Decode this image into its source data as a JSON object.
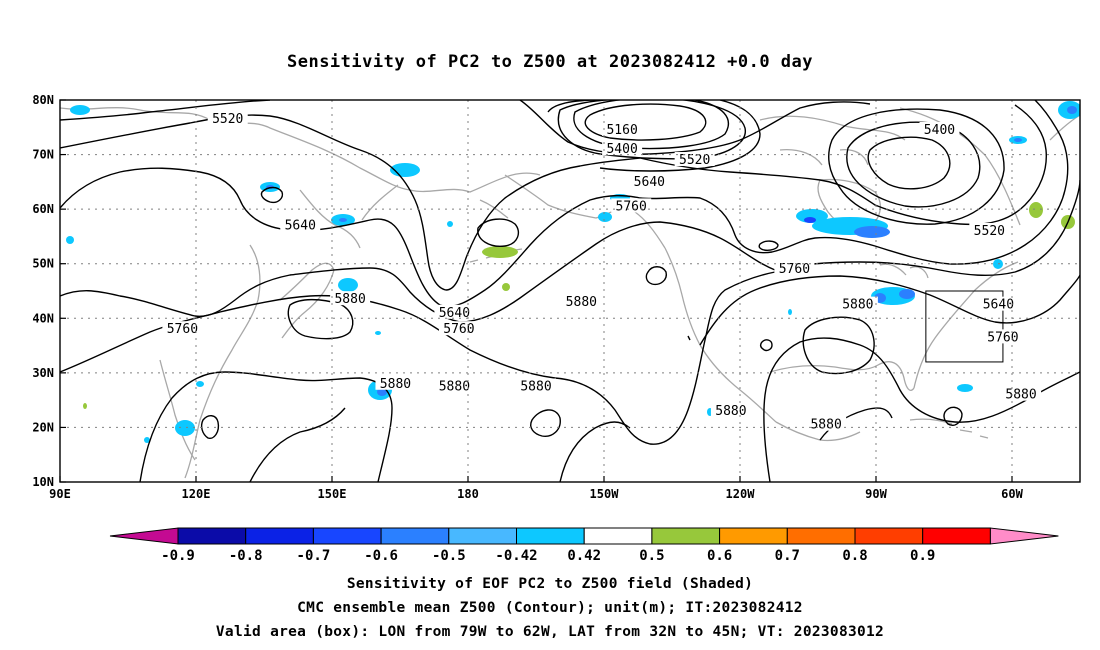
{
  "title": "Sensitivity of PC2 to Z500 at 2023082412 +0.0 day",
  "x_ticks": [
    {
      "lon": 90,
      "label": "90E"
    },
    {
      "lon": 120,
      "label": "120E"
    },
    {
      "lon": 150,
      "label": "150E"
    },
    {
      "lon": 180,
      "label": "180"
    },
    {
      "lon": 210,
      "label": "150W"
    },
    {
      "lon": 240,
      "label": "120W"
    },
    {
      "lon": 270,
      "label": "90W"
    },
    {
      "lon": 300,
      "label": "60W"
    }
  ],
  "y_ticks": [
    {
      "lat": 80,
      "label": "80N"
    },
    {
      "lat": 70,
      "label": "70N"
    },
    {
      "lat": 60,
      "label": "60N"
    },
    {
      "lat": 50,
      "label": "50N"
    },
    {
      "lat": 40,
      "label": "40N"
    },
    {
      "lat": 30,
      "label": "30N"
    },
    {
      "lat": 20,
      "label": "20N"
    },
    {
      "lat": 10,
      "label": "10N"
    }
  ],
  "map_extent": {
    "lon_min": 90,
    "lon_max": 315,
    "lat_min": 10,
    "lat_max": 80
  },
  "valid_box": {
    "lon": [
      281,
      298
    ],
    "lat": [
      32,
      45
    ]
  },
  "contour_labels": [
    {
      "text": "5520",
      "lon": 127,
      "lat": 76.5
    },
    {
      "text": "5160",
      "lon": 214,
      "lat": 74.5
    },
    {
      "text": "5400",
      "lon": 214,
      "lat": 71
    },
    {
      "text": "5520",
      "lon": 230,
      "lat": 69
    },
    {
      "text": "5640",
      "lon": 220,
      "lat": 65
    },
    {
      "text": "5760",
      "lon": 216,
      "lat": 60.5
    },
    {
      "text": "5400",
      "lon": 284,
      "lat": 74.5
    },
    {
      "text": "5520",
      "lon": 295,
      "lat": 56
    },
    {
      "text": "5640",
      "lon": 297,
      "lat": 42.5
    },
    {
      "text": "5760",
      "lon": 298,
      "lat": 36.5
    },
    {
      "text": "5880",
      "lon": 302,
      "lat": 26
    },
    {
      "text": "5880",
      "lon": 266,
      "lat": 42.5
    },
    {
      "text": "5760",
      "lon": 252,
      "lat": 49
    },
    {
      "text": "5880",
      "lon": 177,
      "lat": 27.5
    },
    {
      "text": "5880",
      "lon": 195,
      "lat": 27.5
    },
    {
      "text": "5880",
      "lon": 238,
      "lat": 23
    },
    {
      "text": "5640",
      "lon": 177,
      "lat": 41
    },
    {
      "text": "5760",
      "lon": 178,
      "lat": 38
    },
    {
      "text": "5880",
      "lon": 205,
      "lat": 43
    },
    {
      "text": "5880",
      "lon": 164,
      "lat": 28
    },
    {
      "text": "5880",
      "lon": 154,
      "lat": 43.5
    },
    {
      "text": "5640",
      "lon": 143,
      "lat": 57
    },
    {
      "text": "5760",
      "lon": 117,
      "lat": 38
    },
    {
      "text": "5880",
      "lon": 259,
      "lat": 20.5
    }
  ],
  "colorbar": {
    "colors": [
      "#c40a92",
      "#0b0ba8",
      "#0b22e6",
      "#1846ff",
      "#2b80ff",
      "#48b8ff",
      "#0dc8ff",
      "#ffffff",
      "#97c83b",
      "#ff9a00",
      "#ff6e00",
      "#ff3e00",
      "#ff0000",
      "#ff8cc8"
    ],
    "labels": [
      "-0.9",
      "-0.8",
      "-0.7",
      "-0.6",
      "-0.5",
      "-0.42",
      "0.42",
      "0.5",
      "0.6",
      "0.7",
      "0.8",
      "0.9"
    ]
  },
  "captions": [
    "Sensitivity of EOF PC2 to Z500 field (Shaded)",
    "CMC ensemble mean Z500 (Contour); unit(m); IT:2023082412",
    "Valid area (box): LON from 79W to 62W, LAT from 32N to 45N; VT: 2023083012"
  ],
  "colors": {
    "contour": "#000000",
    "coast": "#a8a8a8",
    "grid": "#808080"
  }
}
